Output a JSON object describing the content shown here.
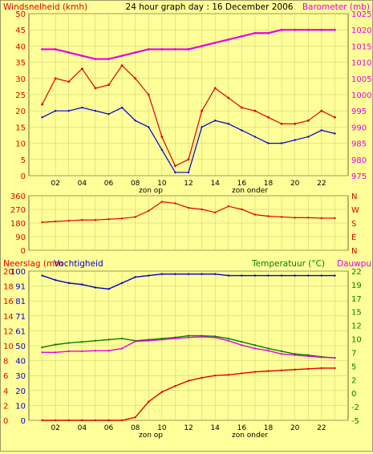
{
  "title": "24 hour graph day : 16 December 2006",
  "colors": {
    "background": "#ffff99",
    "plot_bg": "#ffff99",
    "border": "#888855",
    "wind": "#e00000",
    "gust": "#e00000",
    "avg_wind": "#0000cc",
    "barometer": "#e600e6",
    "direction": "#e00000",
    "rain": "#e00000",
    "humidity": "#0000cc",
    "temperature": "#008000",
    "dewpoint": "#e600e6",
    "left_axis_text": "#e00000",
    "right_axis_text": "#e600e6",
    "temp_axis_text": "#008000"
  },
  "labels": {
    "windspeed": "Windsnelheid (kmh)",
    "barometer": "Barometer (mb)",
    "sunrise": "zon op",
    "sunset": "zon onder",
    "rain": "Neerslag (mm",
    "humidity": "Vochtigheid",
    "temperature": "Temperatuur (°C)",
    "dewpoint": "Dauwpunt"
  },
  "chart_data": [
    {
      "type": "line",
      "name": "wind_barometer",
      "x": [
        1,
        2,
        3,
        4,
        5,
        6,
        7,
        8,
        9,
        10,
        11,
        12,
        13,
        14,
        15,
        16,
        17,
        18,
        19,
        20,
        21,
        22,
        23
      ],
      "xticks": [
        "02",
        "04",
        "06",
        "08",
        "10",
        "12",
        "14",
        "16",
        "18",
        "20",
        "22"
      ],
      "ylim": [
        0,
        50
      ],
      "yticks": [
        "0",
        "5",
        "10",
        "15",
        "20",
        "25",
        "30",
        "35",
        "40",
        "45",
        "50"
      ],
      "y2lim": [
        975,
        1025
      ],
      "y2ticks": [
        "975",
        "980",
        "985",
        "990",
        "995",
        "1000",
        "1005",
        "1010",
        "1015",
        "1020",
        "1025"
      ],
      "series": [
        {
          "name": "gust",
          "values": [
            22,
            30,
            29,
            33,
            27,
            28,
            34,
            30,
            25,
            12,
            3,
            5,
            20,
            27,
            24,
            21,
            20,
            18,
            16,
            16,
            17,
            20,
            18
          ]
        },
        {
          "name": "wind",
          "values": [
            18,
            20,
            20,
            21,
            20,
            19,
            21,
            17,
            15,
            8,
            1,
            1,
            15,
            17,
            16,
            14,
            12,
            10,
            10,
            11,
            12,
            14,
            13
          ]
        },
        {
          "name": "barometer",
          "values": [
            1014,
            1014,
            1013,
            1012,
            1011,
            1011,
            1012,
            1013,
            1014,
            1014,
            1014,
            1014,
            1015,
            1016,
            1017,
            1018,
            1019,
            1019,
            1020,
            1020,
            1020,
            1020,
            1020
          ]
        }
      ],
      "annotations": [
        "zon op",
        "zon onder"
      ]
    },
    {
      "type": "line",
      "name": "wind_direction",
      "x": [
        1,
        2,
        3,
        4,
        5,
        6,
        7,
        8,
        9,
        10,
        11,
        12,
        13,
        14,
        15,
        16,
        17,
        18,
        19,
        20,
        21,
        22,
        23
      ],
      "xticks": [
        "02",
        "04",
        "06",
        "08",
        "10",
        "12",
        "14",
        "16",
        "18",
        "20",
        "22"
      ],
      "ylim": [
        0,
        360
      ],
      "yticks": [
        "360",
        "270",
        "180",
        "90",
        "0"
      ],
      "y2ticks": [
        "N",
        "W",
        "S",
        "E",
        "N"
      ],
      "series": [
        {
          "name": "direction",
          "values": [
            185,
            190,
            195,
            200,
            200,
            205,
            210,
            220,
            260,
            320,
            310,
            280,
            270,
            250,
            290,
            270,
            235,
            225,
            220,
            215,
            215,
            212,
            212
          ]
        }
      ]
    },
    {
      "type": "line",
      "name": "rain_humidity_temperature",
      "x": [
        1,
        2,
        3,
        4,
        5,
        6,
        7,
        8,
        9,
        10,
        11,
        12,
        13,
        14,
        15,
        16,
        17,
        18,
        19,
        20,
        21,
        22,
        23
      ],
      "xticks": [
        "02",
        "04",
        "06",
        "08",
        "10",
        "12",
        "14",
        "16",
        "18",
        "20",
        "22"
      ],
      "ylim": [
        0,
        100
      ],
      "yticks_humidity": [
        "0",
        "10",
        "20",
        "30",
        "40",
        "50",
        "61",
        "71",
        "81",
        "91",
        "100"
      ],
      "yticks_rain": [
        "0",
        "2",
        "4",
        "6",
        "8",
        "10",
        "12",
        "14",
        "16",
        "18",
        "20"
      ],
      "y2lim": [
        -5,
        22
      ],
      "y2ticks": [
        "-5",
        "-2",
        "0",
        "2",
        "5",
        "7",
        "10",
        "12",
        "15",
        "17",
        "19",
        "22"
      ],
      "series": [
        {
          "name": "humidity",
          "values": [
            97,
            94,
            92,
            91,
            89,
            88,
            92,
            96,
            97,
            98,
            98,
            98,
            98,
            98,
            97,
            97,
            97,
            97,
            97,
            97,
            97,
            97,
            97
          ]
        },
        {
          "name": "rain",
          "values": [
            0,
            0,
            0,
            0,
            0,
            0,
            0,
            0.4,
            2.5,
            3.8,
            4.6,
            5.3,
            5.7,
            6,
            6.1,
            6.3,
            6.5,
            6.6,
            6.7,
            6.8,
            6.9,
            7,
            7
          ]
        },
        {
          "name": "temperature",
          "values": [
            8.2,
            8.7,
            9,
            9.2,
            9.4,
            9.6,
            9.8,
            9.4,
            9.6,
            9.8,
            10,
            10.3,
            10.3,
            10.2,
            9.8,
            9.2,
            8.6,
            8,
            7.5,
            7,
            6.8,
            6.5,
            6.3
          ]
        },
        {
          "name": "dewpoint",
          "values": [
            7.3,
            7.3,
            7.5,
            7.5,
            7.6,
            7.6,
            8,
            9.3,
            9.4,
            9.6,
            9.8,
            10,
            10.1,
            10,
            9.4,
            8.6,
            8,
            7.6,
            7,
            6.8,
            6.6,
            6.4,
            6.3
          ]
        }
      ]
    }
  ]
}
